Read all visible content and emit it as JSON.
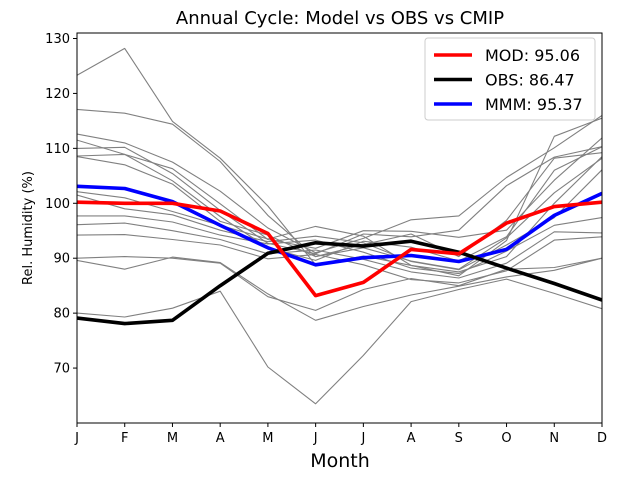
{
  "chart_data": {
    "type": "line",
    "title": "Annual Cycle: Model vs OBS vs CMIP",
    "xlabel": "Month",
    "ylabel": "Rel. Humidity (%)",
    "categories": [
      "J",
      "F",
      "M",
      "A",
      "M",
      "J",
      "J",
      "A",
      "S",
      "O",
      "N",
      "D"
    ],
    "ylim": [
      60,
      131
    ],
    "yticks": [
      70,
      80,
      90,
      100,
      110,
      120,
      130
    ],
    "legend_position": "top-right",
    "series": [
      {
        "name": "MOD: 95.06",
        "color": "#ff0000",
        "role": "main",
        "values": [
          100.2,
          100.0,
          100.0,
          98.6,
          94.5,
          83.2,
          85.6,
          91.6,
          90.8,
          96.4,
          99.4,
          100.2
        ]
      },
      {
        "name": "OBS: 86.47",
        "color": "#000000",
        "role": "main",
        "values": [
          79.1,
          78.1,
          78.7,
          85.0,
          90.9,
          92.8,
          92.2,
          93.1,
          91.1,
          88.2,
          85.4,
          82.4
        ]
      },
      {
        "name": "MMM: 95.37",
        "color": "#0000ff",
        "role": "main",
        "values": [
          103.1,
          102.7,
          100.3,
          96.0,
          91.9,
          88.8,
          90.1,
          90.5,
          89.4,
          91.6,
          97.8,
          101.8
        ]
      }
    ],
    "ensemble_series": [
      {
        "values": [
          123.3,
          128.2,
          114.9,
          108.2,
          99.5,
          88.8,
          90.4,
          88.7,
          86.8,
          93.2,
          112.2,
          115.5
        ]
      },
      {
        "values": [
          117.1,
          116.4,
          114.4,
          107.6,
          97.8,
          90.3,
          92.5,
          94.4,
          90.3,
          96.9,
          108.2,
          109.2
        ]
      },
      {
        "values": [
          112.6,
          111.0,
          107.5,
          102.2,
          95.5,
          91.0,
          93.6,
          97.0,
          97.7,
          104.7,
          110.1,
          116.0
        ]
      },
      {
        "values": [
          111.5,
          108.9,
          106.3,
          99.9,
          93.4,
          91.8,
          95.0,
          94.9,
          93.8,
          95.1,
          104.2,
          111.9
        ]
      },
      {
        "values": [
          110.0,
          110.2,
          105.4,
          98.7,
          92.7,
          90.8,
          94.4,
          93.9,
          95.1,
          103.2,
          108.4,
          110.3
        ]
      },
      {
        "values": [
          108.6,
          108.9,
          104.1,
          97.6,
          91.9,
          89.6,
          93.1,
          92.0,
          89.5,
          93.9,
          106.0,
          110.3
        ]
      },
      {
        "values": [
          108.5,
          107.0,
          103.5,
          96.7,
          94.2,
          90.3,
          91.9,
          89.5,
          88.0,
          93.7,
          101.9,
          108.2
        ]
      },
      {
        "values": [
          102.1,
          101.0,
          98.5,
          96.0,
          93.5,
          95.8,
          94.0,
          88.7,
          87.5,
          90.3,
          100.0,
          108.5
        ]
      },
      {
        "values": [
          101.5,
          99.0,
          97.9,
          95.1,
          93.0,
          94.0,
          92.8,
          89.4,
          87.9,
          92.4,
          97.4,
          106.1
        ]
      },
      {
        "values": [
          97.7,
          97.7,
          96.6,
          94.2,
          92.6,
          93.3,
          91.1,
          88.2,
          87.2,
          91.3,
          96.0,
          97.4
        ]
      },
      {
        "values": [
          96.1,
          96.4,
          95.0,
          93.4,
          90.8,
          91.5,
          89.8,
          87.5,
          86.4,
          89.1,
          94.8,
          94.6
        ]
      },
      {
        "values": [
          94.2,
          94.3,
          93.4,
          92.4,
          89.9,
          90.7,
          88.8,
          86.1,
          85.5,
          87.7,
          93.3,
          93.9
        ]
      },
      {
        "values": [
          90.0,
          90.3,
          90.0,
          89.1,
          83.0,
          80.5,
          84.3,
          86.3,
          85.0,
          88.0,
          88.3,
          90.0
        ]
      },
      {
        "values": [
          89.6,
          88.0,
          90.2,
          89.2,
          83.5,
          78.7,
          81.2,
          83.3,
          84.9,
          86.6,
          87.8,
          90.0
        ]
      },
      {
        "values": [
          80.0,
          79.3,
          80.9,
          84.0,
          70.2,
          63.5,
          72.3,
          82.1,
          84.3,
          86.2,
          83.6,
          80.8
        ]
      }
    ]
  }
}
